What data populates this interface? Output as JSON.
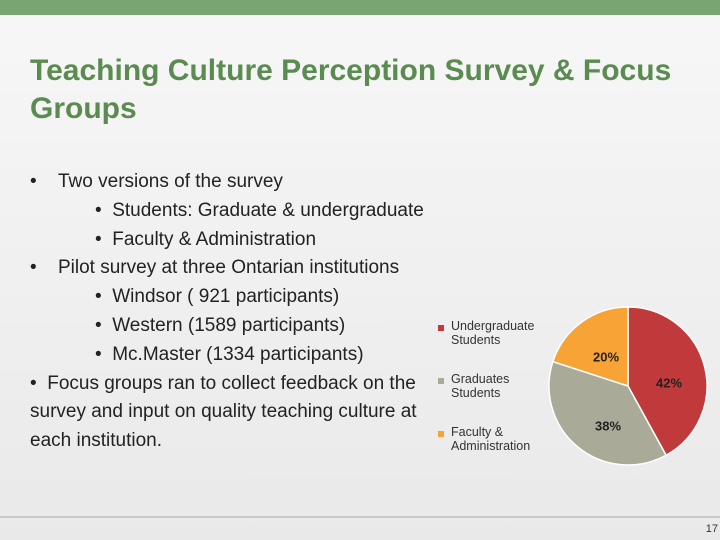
{
  "title": "Teaching Culture Perception Survey & Focus Groups",
  "bullets": [
    {
      "text": "Two versions of the survey",
      "sub": [
        "Students: Graduate & undergraduate",
        "Faculty & Administration"
      ]
    },
    {
      "text": "Pilot survey at three Ontarian institutions",
      "sub": [
        "Windsor  ( 921 participants)",
        "Western (1589 participants)",
        "Mc.Master (1334 participants)"
      ]
    },
    {
      "text": "Focus groups ran to collect feedback on the survey and input on quality teaching culture at each institution.",
      "sub": []
    }
  ],
  "page_number": "17",
  "chart_data": {
    "type": "pie",
    "categories": [
      "Undergraduate Students",
      "Graduates Students",
      "Faculty & Administration"
    ],
    "values": [
      42,
      38,
      20
    ],
    "value_labels": [
      "42%",
      "38%",
      "20%"
    ],
    "colors": [
      "#c0393b",
      "#a9ab98",
      "#f7a336"
    ]
  }
}
